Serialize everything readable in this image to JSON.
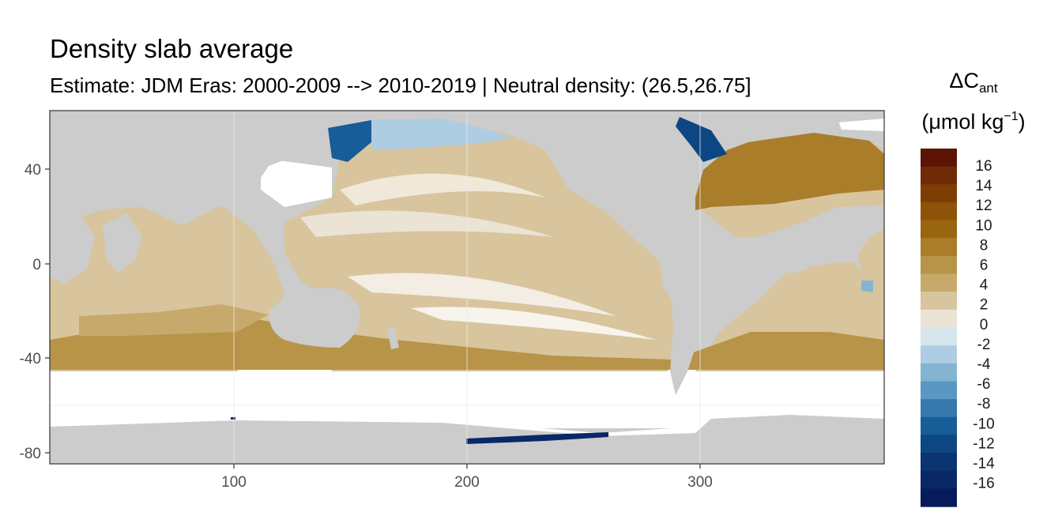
{
  "title": "Density slab average",
  "subtitle": "Estimate: JDM Eras: 2000-2009 --> 2010-2019 | Neutral density: (26.5,26.75]",
  "legend": {
    "symbol": "ΔC",
    "symbol_sub": "ant",
    "unit_prefix": "(μmol kg",
    "unit_sup": "−1",
    "unit_suffix": ")",
    "labels": [
      "16",
      "14",
      "12",
      "10",
      "8",
      "6",
      "4",
      "2",
      "0",
      "-2",
      "-4",
      "-6",
      "-8",
      "-10",
      "-12",
      "-14",
      "-16"
    ],
    "colors": [
      "#5b1406",
      "#6f2b06",
      "#7f3d06",
      "#8e5208",
      "#9a650f",
      "#a97d2a",
      "#b89449",
      "#c7a96c",
      "#d8c59e",
      "#ebe3d4",
      "#d6e6ee",
      "#aecde3",
      "#85b4d3",
      "#5a98c3",
      "#3679ac",
      "#175d98",
      "#0c4683",
      "#0b3473",
      "#0a2766",
      "#061a5c"
    ]
  },
  "axes": {
    "x_ticks": [
      "100",
      "200",
      "300"
    ],
    "y_ticks": [
      "40",
      "0",
      "-40",
      "-80"
    ]
  },
  "colors": {
    "land": "#cccccc",
    "no_data": "#ffffff",
    "grid": "#ebebeb",
    "panel_border": "#333333"
  }
}
